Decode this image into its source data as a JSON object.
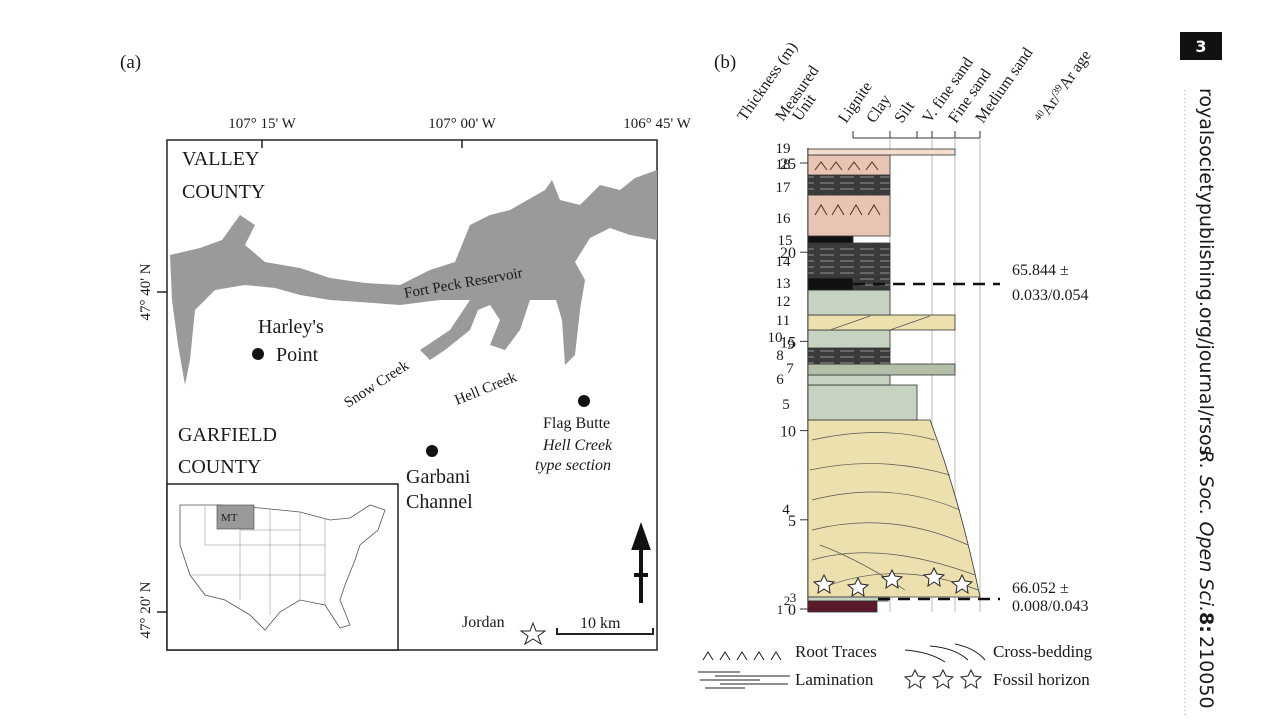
{
  "page": {
    "number": "3",
    "journal_url": "royalsocietypublishing.org/journal/rsos",
    "citation": {
      "journal": "R. Soc. Open Sci.",
      "volume": "8:",
      "article": "210050"
    }
  },
  "panel_a": {
    "label": "(a)",
    "longitudes": [
      "107° 15' W",
      "107° 00' W",
      "106° 45' W"
    ],
    "latitudes": [
      "47° 40' N",
      "47° 20' N"
    ],
    "counties": [
      [
        "VALLEY",
        "COUNTY"
      ],
      [
        "GARFIELD",
        "COUNTY"
      ]
    ],
    "waters": [
      "Fort Peck Reservoir",
      "Snow Creek",
      "Hell Creek"
    ],
    "localities": {
      "harleys": [
        "Harley's",
        "Point"
      ],
      "garbani": [
        "Garbani",
        "Channel"
      ],
      "flag_butte": [
        "Flag Butte",
        "Hell Creek",
        "type section"
      ],
      "jordan": "Jordan"
    },
    "scale_bar": "10 km",
    "inset_state": "MT"
  },
  "panel_b": {
    "label": "(b)",
    "thickness_header": "Thickness (m)",
    "unit_header": [
      "Measured",
      "Unit"
    ],
    "grain_sizes": [
      "Lignite",
      "Clay",
      "Silt",
      "V. fine sand",
      "Fine sand",
      "Medium sand"
    ],
    "age_header": {
      "mass1": "40",
      "element1": "Ar/",
      "mass2": "39",
      "element2": "Ar age"
    },
    "thickness_ticks": [
      0,
      5,
      10,
      15,
      20,
      25
    ],
    "units": [
      "1",
      "2",
      "3",
      "4",
      "5",
      "6",
      "7",
      "8",
      "9",
      "10",
      "11",
      "12",
      "13",
      "14",
      "15",
      "16",
      "17",
      "18",
      "19"
    ],
    "ages": [
      [
        "65.844 ±",
        "0.033/0.054"
      ],
      [
        "66.052 ±",
        "0.008/0.043"
      ]
    ],
    "legend": [
      "Root Traces",
      "Cross-bedding",
      "Lamination",
      "Fossil horizon"
    ]
  }
}
